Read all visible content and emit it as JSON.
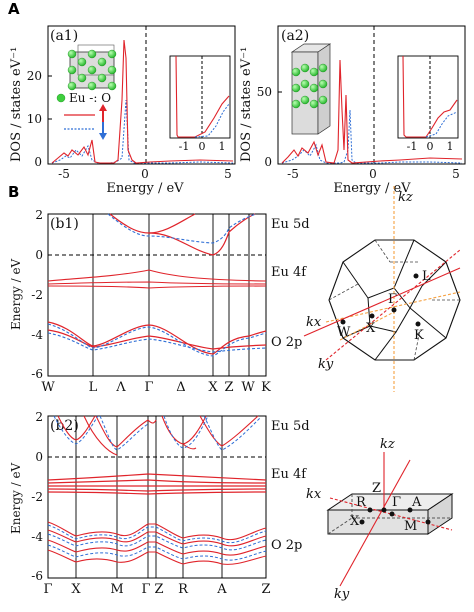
{
  "panel_labels": {
    "A": "A",
    "B": "B",
    "a1": "(a1)",
    "a2": "(a2)",
    "b1": "(b1)",
    "b2": "(b2)"
  },
  "legend": {
    "eu_o": "Eu -: O"
  },
  "colors": {
    "spin_up": "#e0242b",
    "spin_down": "#2f6fd6",
    "atom": "#3ecf3e",
    "kpath": "#f5a142"
  },
  "dos": {
    "xlabel": "Energy / eV",
    "ylabel": "DOS / states eV⁻¹",
    "a1_yticks": [
      "0",
      "10",
      "20"
    ],
    "a2_yticks": [
      "0",
      "50"
    ],
    "xticks": [
      "-5",
      "0",
      "5"
    ],
    "inset_xticks": [
      "-1",
      "0",
      "1"
    ]
  },
  "bands": {
    "ylabel": "Energy / eV",
    "yticks": [
      "2",
      "0",
      "-2",
      "-4",
      "-6"
    ],
    "b1_kpoints": [
      "W",
      "L",
      "Λ",
      "Γ",
      "Δ",
      "X",
      "Z",
      "W",
      "K"
    ],
    "b2_kpoints": [
      "Γ",
      "X",
      "M",
      "Γ",
      "Z",
      "R",
      "A",
      "Z"
    ],
    "right_labels": [
      "Eu 5d",
      "Eu 4f",
      "O 2p"
    ]
  },
  "bz1": {
    "kz": "kz",
    "kx": "kx",
    "ky": "ky",
    "points": [
      "L",
      "Γ",
      "W",
      "X",
      "K"
    ]
  },
  "bz2": {
    "kz": "kz",
    "kx": "kx",
    "ky": "ky",
    "points": [
      "R",
      "Z",
      "Γ",
      "A",
      "X",
      "M"
    ]
  }
}
